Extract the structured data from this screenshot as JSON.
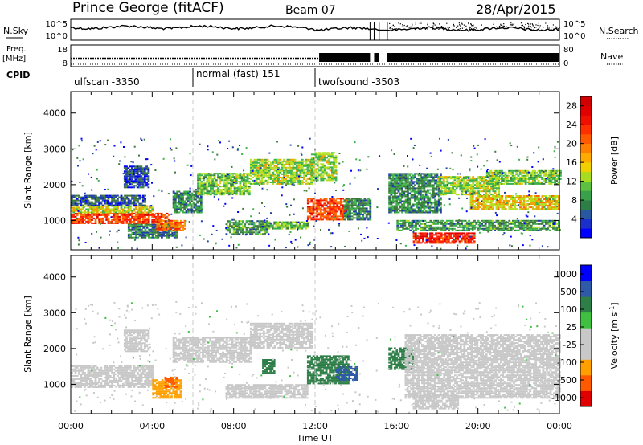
{
  "header": {
    "title": "Prince George (fitACF)",
    "beam": "Beam 07",
    "date": "28/Apr/2015"
  },
  "noise_panel": {
    "left_label": "N.Sky",
    "right_label": "N.Search",
    "left_ticks": [
      "10^5",
      "10^0"
    ],
    "right_ticks": [
      "10^5",
      "10^0"
    ]
  },
  "freq_panel": {
    "left_label_1": "Freq.",
    "left_label_2": "[MHz]",
    "left_ticks": [
      "18",
      "8"
    ],
    "right_label": "Nave",
    "right_ticks": [
      "80",
      "0"
    ]
  },
  "cpid": {
    "label": "CPID",
    "segments": [
      {
        "text": "ulfscan -3350",
        "start_hour": 0,
        "end_hour": 6
      },
      {
        "text": "normal (fast) 151",
        "start_hour": 6,
        "end_hour": 12
      },
      {
        "text": "twofsound -3503",
        "start_hour": 12,
        "end_hour": 24
      }
    ]
  },
  "colors": {
    "power": [
      "#0000ff",
      "#2040a8",
      "#3e7a3e",
      "#3cb24a",
      "#b4e020",
      "#f0a000",
      "#ff6a00",
      "#ff2000",
      "#e00000"
    ],
    "velocity": [
      "#e00000",
      "#ff5a00",
      "#ffa000",
      "#c8c8c8",
      "#c8c8c8",
      "#40c040",
      "#2e7e48",
      "#2e5aa8",
      "#0000ff"
    ]
  },
  "chart_data": [
    {
      "type": "heatmap",
      "name": "power",
      "ylabel": "Slant Range [km]",
      "colorbar_label": "Power [dB]",
      "colorbar_ticks": [
        "4",
        "8",
        "12",
        "16",
        "20",
        "24",
        "28"
      ],
      "colorbar_range": [
        0,
        30
      ],
      "x_ticks": [
        "00:00",
        "04:00",
        "08:00",
        "12:00",
        "16:00",
        "20:00",
        "00:00"
      ],
      "xlim": [
        0,
        24
      ],
      "ylim": [
        180,
        4600
      ],
      "y_ticks": [
        1000,
        2000,
        3000,
        4000
      ],
      "data_gaps_hours": [
        [
          14.7,
          14.9
        ],
        [
          15.15,
          15.55
        ]
      ],
      "bands": [
        {
          "t0": 0.0,
          "t1": 4.8,
          "r0": 900,
          "r1": 1200,
          "power": 24
        },
        {
          "t0": 0.0,
          "t1": 4.0,
          "r0": 1200,
          "r1": 1400,
          "power": 16
        },
        {
          "t0": 0.0,
          "t1": 3.6,
          "r0": 1400,
          "r1": 1700,
          "power": 6
        },
        {
          "t0": 2.6,
          "t1": 3.8,
          "r0": 1900,
          "r1": 2500,
          "power": 5
        },
        {
          "t0": 2.8,
          "t1": 5.2,
          "r0": 500,
          "r1": 900,
          "power": 8
        },
        {
          "t0": 4.2,
          "t1": 5.6,
          "r0": 700,
          "r1": 1000,
          "power": 22
        },
        {
          "t0": 5.0,
          "t1": 6.4,
          "r0": 1200,
          "r1": 1800,
          "power": 9
        },
        {
          "t0": 6.2,
          "t1": 8.8,
          "r0": 1700,
          "r1": 2300,
          "power": 13
        },
        {
          "t0": 8.8,
          "t1": 11.8,
          "r0": 2000,
          "r1": 2700,
          "power": 14
        },
        {
          "t0": 7.6,
          "t1": 9.6,
          "r0": 600,
          "r1": 1000,
          "power": 10
        },
        {
          "t0": 9.6,
          "t1": 11.6,
          "r0": 750,
          "r1": 950,
          "power": 12
        },
        {
          "t0": 11.6,
          "t1": 13.6,
          "r0": 1000,
          "r1": 1600,
          "power": 24
        },
        {
          "t0": 11.8,
          "t1": 13.0,
          "r0": 2100,
          "r1": 2900,
          "power": 14
        },
        {
          "t0": 13.4,
          "t1": 14.7,
          "r0": 1000,
          "r1": 1600,
          "power": 9
        },
        {
          "t0": 15.6,
          "t1": 18.2,
          "r0": 1200,
          "r1": 2300,
          "power": 9
        },
        {
          "t0": 16.8,
          "t1": 19.8,
          "r0": 350,
          "r1": 650,
          "power": 26
        },
        {
          "t0": 18.0,
          "t1": 21.0,
          "r0": 1700,
          "r1": 2200,
          "power": 14
        },
        {
          "t0": 19.6,
          "t1": 24.0,
          "r0": 1300,
          "r1": 1700,
          "power": 17
        },
        {
          "t0": 20.4,
          "t1": 24.0,
          "r0": 2000,
          "r1": 2400,
          "power": 13
        },
        {
          "t0": 16.0,
          "t1": 24.0,
          "r0": 700,
          "r1": 1000,
          "power": 10
        }
      ]
    },
    {
      "type": "heatmap",
      "name": "velocity",
      "ylabel": "Slant Range [km]",
      "colorbar_label": "Velocity [m s^-1]",
      "colorbar_ticks": [
        "-1000",
        "-500",
        "-100",
        "-25",
        "25",
        "100",
        "500",
        "1000"
      ],
      "x_ticks": [
        "00:00",
        "04:00",
        "08:00",
        "12:00",
        "16:00",
        "20:00",
        "00:00"
      ],
      "xlabel": "Time UT",
      "xlim": [
        0,
        24
      ],
      "ylim": [
        180,
        4600
      ],
      "y_ticks": [
        1000,
        2000,
        3000,
        4000
      ],
      "bands": [
        {
          "t0": 0.0,
          "t1": 4.0,
          "r0": 900,
          "r1": 1500,
          "velocity": 0
        },
        {
          "t0": 2.6,
          "t1": 3.8,
          "r0": 1900,
          "r1": 2500,
          "velocity": 0
        },
        {
          "t0": 4.0,
          "t1": 5.4,
          "r0": 600,
          "r1": 1100,
          "velocity": -200
        },
        {
          "t0": 4.6,
          "t1": 5.2,
          "r0": 900,
          "r1": 1200,
          "velocity": -600
        },
        {
          "t0": 5.0,
          "t1": 8.8,
          "r0": 1600,
          "r1": 2300,
          "velocity": 0
        },
        {
          "t0": 8.8,
          "t1": 11.8,
          "r0": 2000,
          "r1": 2700,
          "velocity": 0
        },
        {
          "t0": 7.6,
          "t1": 11.6,
          "r0": 600,
          "r1": 1000,
          "velocity": 0
        },
        {
          "t0": 9.4,
          "t1": 10.0,
          "r0": 1300,
          "r1": 1700,
          "velocity": 200
        },
        {
          "t0": 11.6,
          "t1": 13.6,
          "r0": 1000,
          "r1": 1800,
          "velocity": 200
        },
        {
          "t0": 13.0,
          "t1": 14.0,
          "r0": 1100,
          "r1": 1500,
          "velocity": 600
        },
        {
          "t0": 15.6,
          "t1": 16.8,
          "r0": 1400,
          "r1": 2000,
          "velocity": 200
        },
        {
          "t0": 16.4,
          "t1": 24.0,
          "r0": 600,
          "r1": 2400,
          "velocity": 0
        },
        {
          "t0": 16.8,
          "t1": 19.0,
          "r0": 300,
          "r1": 700,
          "velocity": 0
        }
      ]
    }
  ],
  "axes": {
    "ylabel": "Slant Range [km]",
    "xlabel": "Time UT"
  }
}
